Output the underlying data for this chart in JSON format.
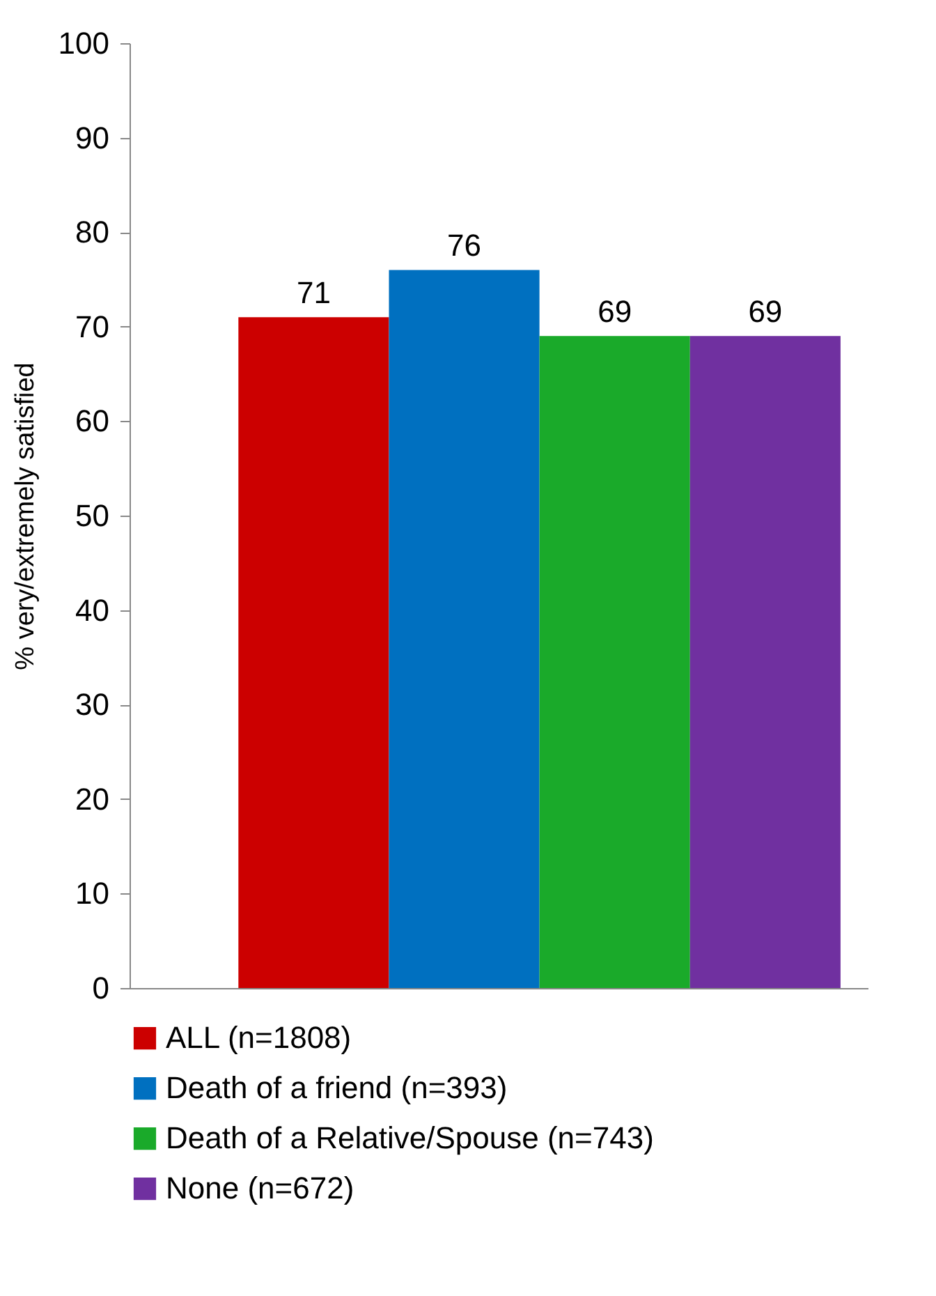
{
  "chart_data": {
    "type": "bar",
    "ylabel": "% very/extremely satisfied",
    "categories": [
      null
    ],
    "series": [
      {
        "name": "ALL (n=1808)",
        "color": "#cc0000",
        "values": [
          71
        ]
      },
      {
        "name": "Death of a friend (n=393)",
        "color": "#0070c0",
        "values": [
          76
        ]
      },
      {
        "name": "Death of a Relative/Spouse (n=743)",
        "color": "#1aaa2a",
        "values": [
          69
        ]
      },
      {
        "name": "None (n=672)",
        "color": "#7030a0",
        "values": [
          69
        ]
      }
    ],
    "ylim": [
      0,
      100
    ],
    "yticks": [
      0,
      10,
      20,
      30,
      40,
      50,
      60,
      70,
      80,
      90,
      100
    ],
    "grid": false,
    "legend": "bottom",
    "data_labels": true
  }
}
